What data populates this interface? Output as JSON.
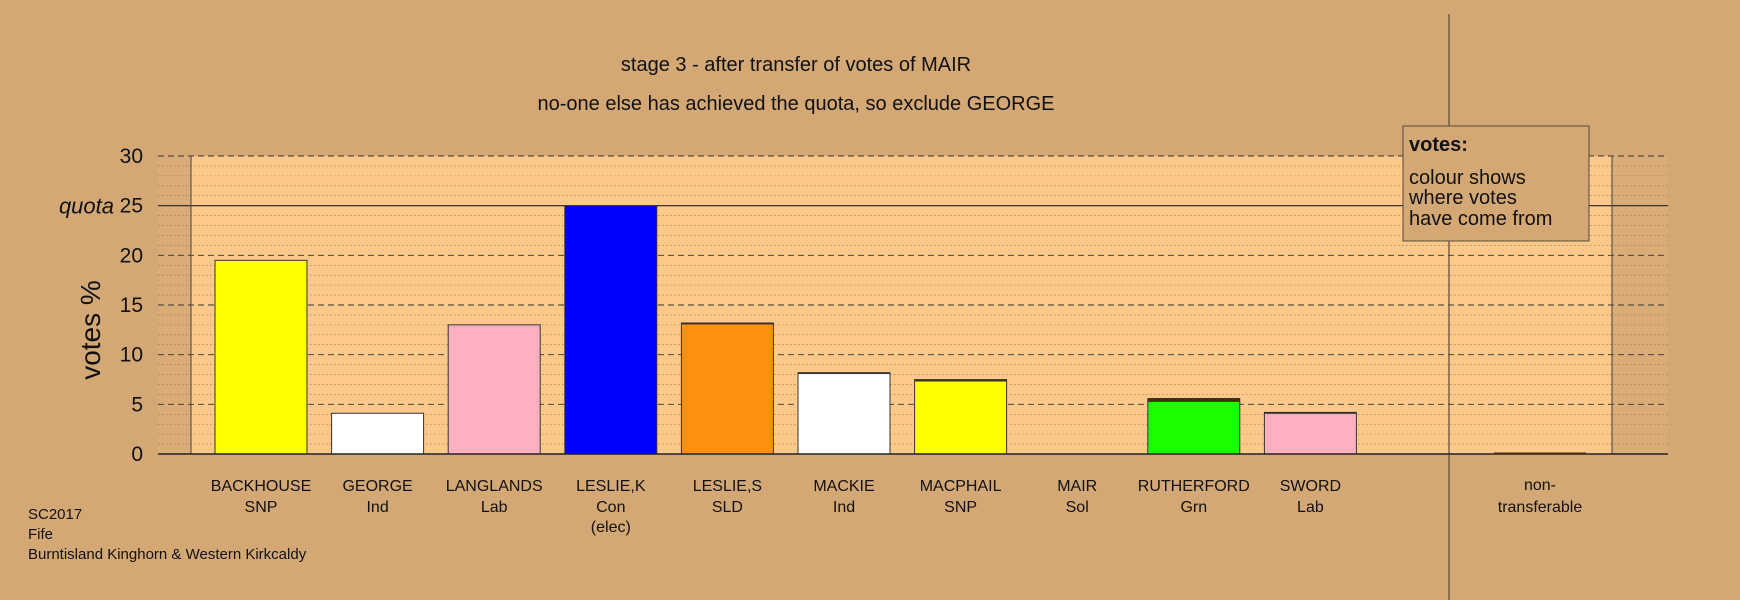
{
  "colors": {
    "background": "#d4a874",
    "plot_background": "#fdc98a",
    "margin_band": "#d9ac78",
    "Yellow": "#ffff00",
    "White": "#ffffff",
    "Pink": "#ffb0c0",
    "Blue": "#0000ff",
    "Orange": "#ff9010",
    "Green": "#1aff00"
  },
  "header": {
    "title": "stage 3 - after transfer of votes of MAIR",
    "subtitle": "no-one else has achieved the quota, so exclude GEORGE"
  },
  "legend": {
    "heading": "votes:",
    "lines": [
      "colour shows",
      "where votes",
      "have come from"
    ]
  },
  "footer": {
    "lines": [
      "SC2017",
      "Fife",
      "Burntisland Kinghorn & Western Kirkcaldy"
    ]
  },
  "chart_data": {
    "type": "bar",
    "ylabel": "votes %",
    "ylim": [
      0,
      30
    ],
    "yticks": [
      0,
      5,
      10,
      15,
      20,
      25,
      30
    ],
    "quota": 25,
    "quota_label": "quota",
    "grid": "dashed major every 5, dotted minor every 1",
    "bars": [
      {
        "name": "BACKHOUSE",
        "party": "SNP",
        "value": 19.5,
        "color": "#ffff00",
        "transfer": 0.0
      },
      {
        "name": "GEORGE",
        "party": "Ind",
        "value": 4.1,
        "color": "#ffffff",
        "transfer": 0.0
      },
      {
        "name": "LANGLANDS",
        "party": "Lab",
        "value": 13.0,
        "color": "#ffb0c0",
        "transfer": 0.0
      },
      {
        "name": "LESLIE,K",
        "party": "Con",
        "note": "(elec)",
        "value": 25.0,
        "color": "#0000ff",
        "transfer": 0.0
      },
      {
        "name": "LESLIE,S",
        "party": "SLD",
        "value": 13.2,
        "color": "#ff9010",
        "transfer": 0.1
      },
      {
        "name": "MACKIE",
        "party": "Ind",
        "value": 8.2,
        "color": "#ffffff",
        "transfer": 0.1
      },
      {
        "name": "MACPHAIL",
        "party": "SNP",
        "value": 7.5,
        "color": "#ffff00",
        "transfer": 0.15
      },
      {
        "name": "MAIR",
        "party": "Sol",
        "value": 0.0,
        "color": "#000000",
        "transfer": 0.0
      },
      {
        "name": "RUTHERFORD",
        "party": "Grn",
        "value": 5.6,
        "color": "#1aff00",
        "transfer": 0.3
      },
      {
        "name": "SWORD",
        "party": "Lab",
        "value": 4.2,
        "color": "#ffb0c0",
        "transfer": 0.1
      }
    ],
    "non_transferable": {
      "label_lines": [
        "non-",
        "transferable"
      ],
      "value": 0.15
    }
  }
}
